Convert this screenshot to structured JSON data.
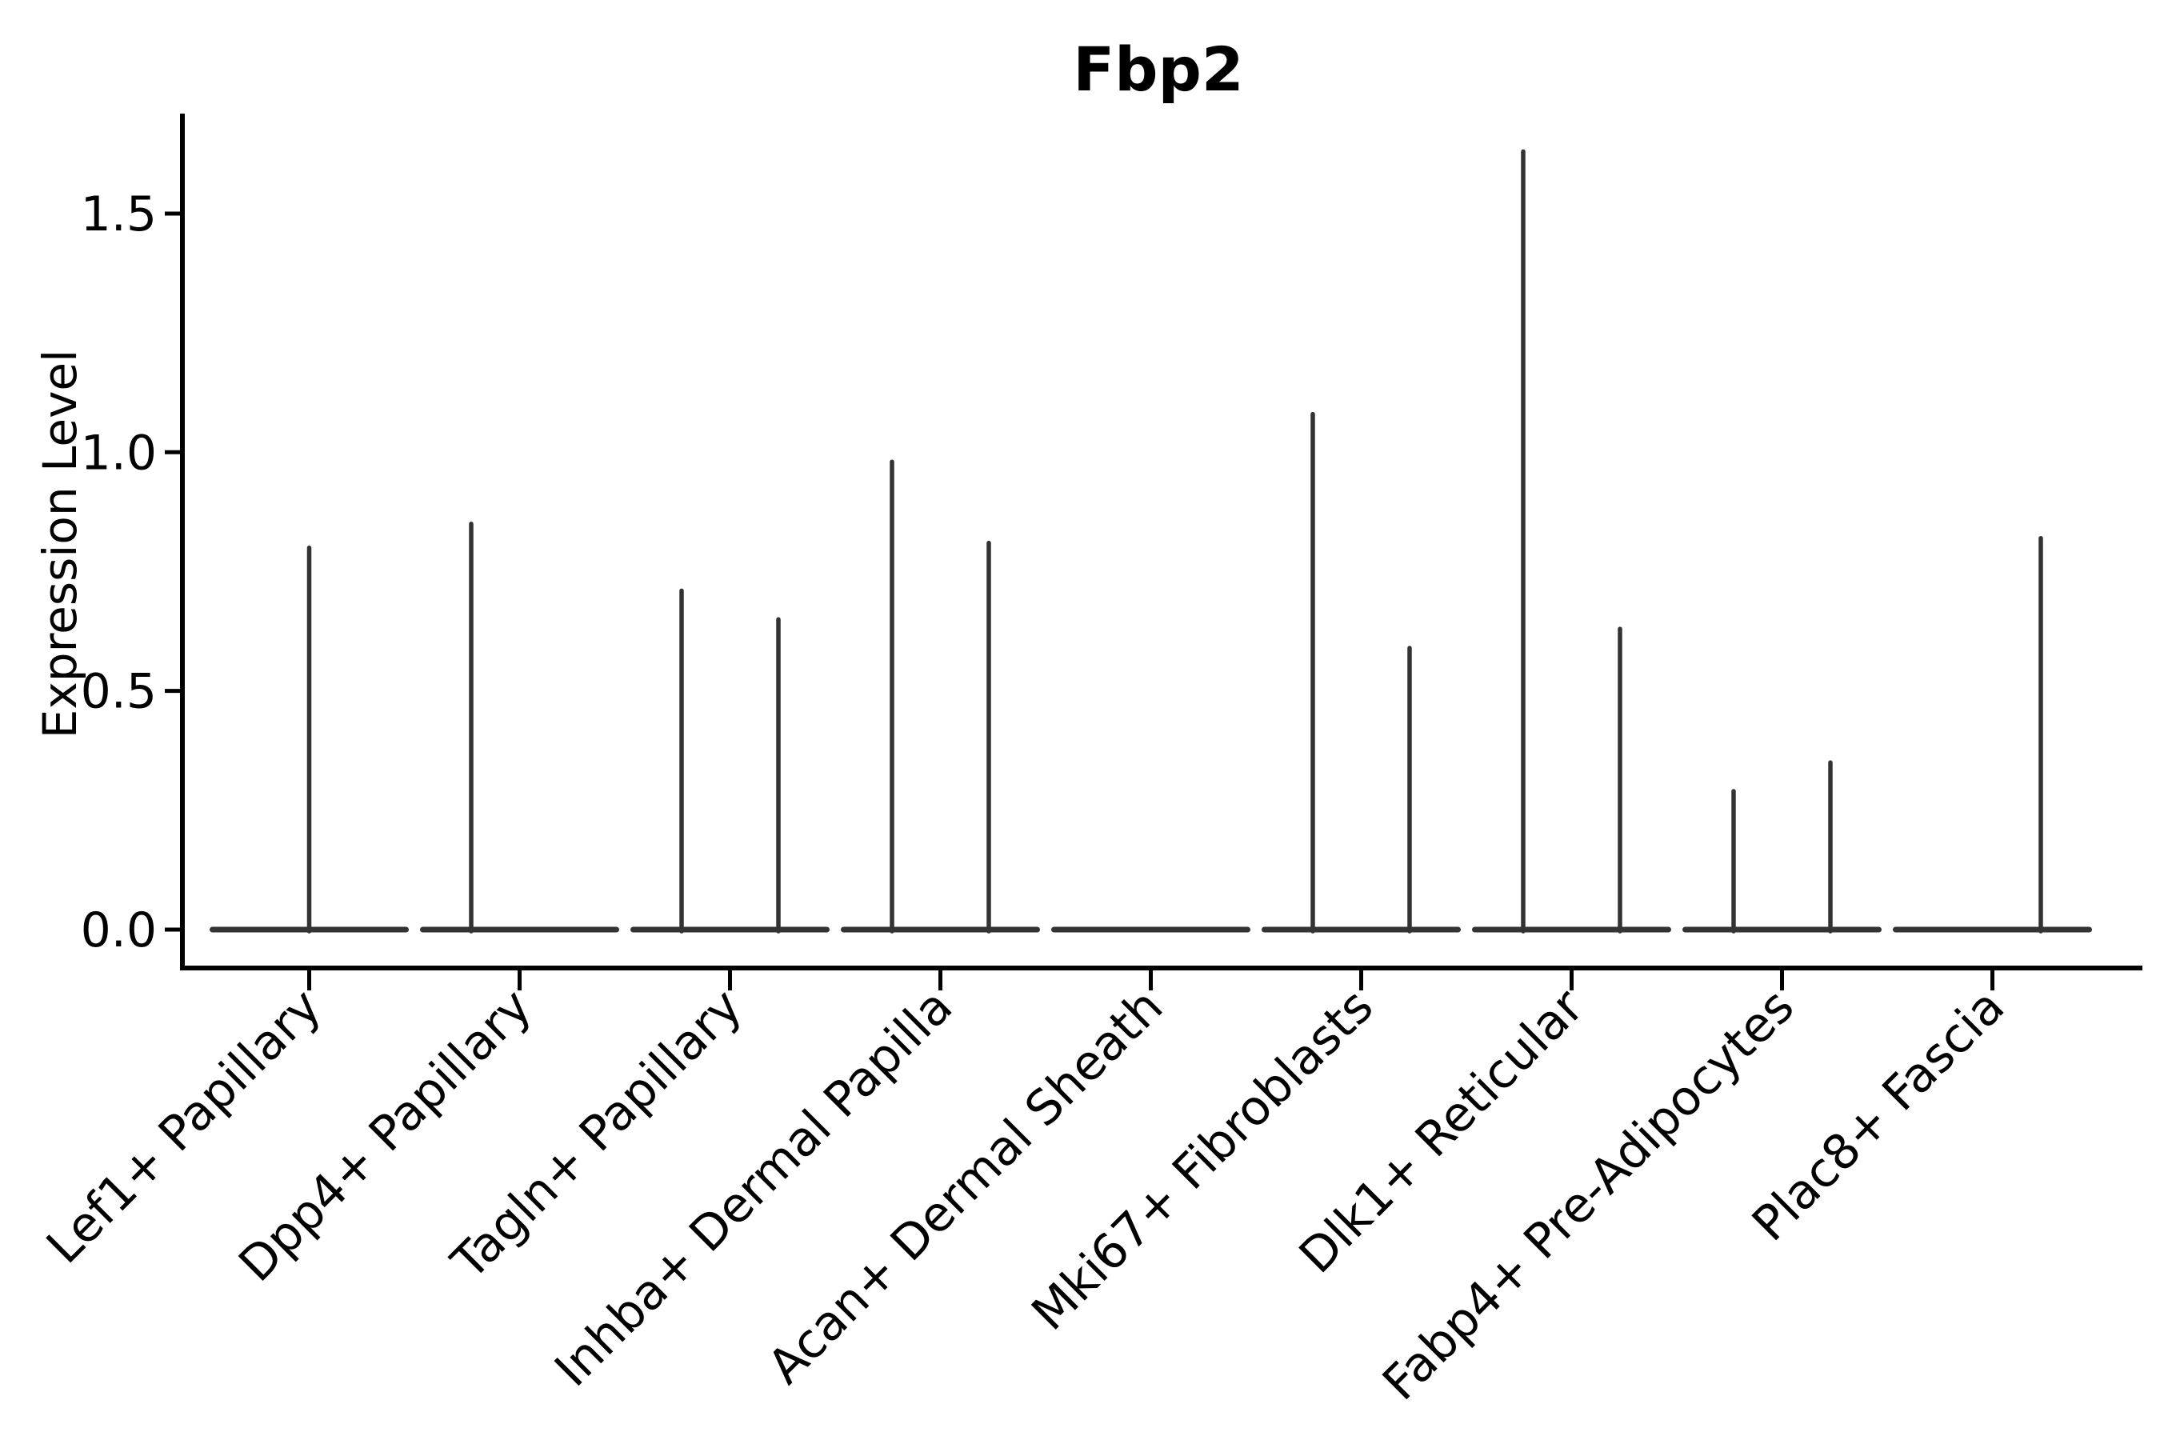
{
  "chart_data": {
    "type": "violin",
    "title": "Fbp2",
    "xlabel": "",
    "ylabel": "Expression Level",
    "ylim": [
      -0.08,
      1.71
    ],
    "ytick_values": [
      0.0,
      0.5,
      1.0,
      1.5
    ],
    "ytick_labels": [
      "0.0",
      "0.5",
      "1.0",
      "1.5"
    ],
    "grid": false,
    "legend_position": "none",
    "violin_line_color": "#333333",
    "axis_color": "#000000",
    "x_tick_label_rotation_deg": 45,
    "categories": [
      "Lef1+ Papillary",
      "Dpp4+ Papillary",
      "Tagln+ Papillary",
      "Inhba+ Dermal Papilla",
      "Acan+ Dermal Sheath",
      "Mki67+ Fibroblasts",
      "Dlk1+ Reticular",
      "Fabp4+ Pre-Adipocytes",
      "Plac8+ Fascia"
    ],
    "violins": [
      {
        "category": "Lef1+ Papillary",
        "baseline_value": 0.0,
        "spikes": [
          {
            "value": 0.8,
            "offset": 0.0
          }
        ]
      },
      {
        "category": "Dpp4+ Papillary",
        "baseline_value": 0.0,
        "spikes": [
          {
            "value": 0.85,
            "offset": -0.5
          }
        ]
      },
      {
        "category": "Tagln+ Papillary",
        "baseline_value": 0.0,
        "spikes": [
          {
            "value": 0.71,
            "offset": -0.5
          },
          {
            "value": 0.65,
            "offset": 0.5
          }
        ]
      },
      {
        "category": "Inhba+ Dermal Papilla",
        "baseline_value": 0.0,
        "spikes": [
          {
            "value": 0.98,
            "offset": -0.5
          },
          {
            "value": 0.81,
            "offset": 0.5
          }
        ]
      },
      {
        "category": "Acan+ Dermal Sheath",
        "baseline_value": 0.0,
        "spikes": []
      },
      {
        "category": "Mki67+ Fibroblasts",
        "baseline_value": 0.0,
        "spikes": [
          {
            "value": 1.08,
            "offset": -0.5
          },
          {
            "value": 0.59,
            "offset": 0.5
          }
        ]
      },
      {
        "category": "Dlk1+ Reticular",
        "baseline_value": 0.0,
        "spikes": [
          {
            "value": 1.63,
            "offset": -0.5
          },
          {
            "value": 0.63,
            "offset": 0.5
          }
        ]
      },
      {
        "category": "Fabp4+ Pre-Adipocytes",
        "baseline_value": 0.0,
        "spikes": [
          {
            "value": 0.29,
            "offset": -0.5
          },
          {
            "value": 0.35,
            "offset": 0.5
          }
        ]
      },
      {
        "category": "Plac8+ Fascia",
        "baseline_value": 0.0,
        "spikes": [
          {
            "value": 0.82,
            "offset": 0.5
          }
        ]
      }
    ]
  }
}
